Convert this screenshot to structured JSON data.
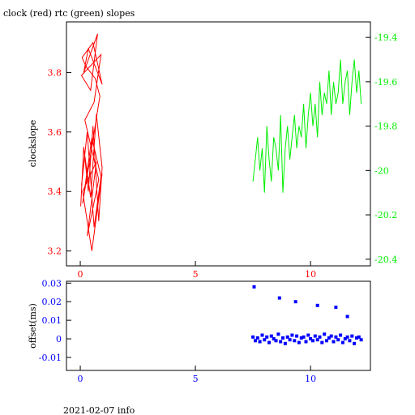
{
  "page": {
    "title": "clock (red) rtc (green) slopes",
    "footer": "2021-02-07 info"
  },
  "colors": {
    "clock": "#ff0000",
    "rtc": "#00ee00",
    "offset": "#0000ff",
    "axis": "#000000"
  },
  "chart_data": [
    {
      "type": "line",
      "title": "clock (red) rtc (green) slopes",
      "xlabel": "",
      "ylabel": "clockslope",
      "xlim": [
        -0.6,
        12.6
      ],
      "x_ticks": [
        0,
        5,
        10
      ],
      "ylim_left": [
        3.15,
        3.97
      ],
      "y_ticks_left": [
        3.2,
        3.4,
        3.6,
        3.8
      ],
      "ylim_right": [
        -20.43,
        -19.33
      ],
      "y_ticks_right": [
        -20.4,
        -20.2,
        -20,
        -19.8,
        -19.6,
        -19.4
      ],
      "grid": false,
      "series": [
        {
          "name": "clock",
          "color": "#ff0000",
          "axis": "left",
          "x": [
            0.02,
            0.15,
            0.35,
            0.55,
            0.8,
            0.95,
            0.7,
            0.45,
            0.2,
            0.05,
            0.3,
            0.6,
            0.9,
            0.5,
            0.1,
            0.4,
            0.85,
            0.65,
            0.25,
            0.08,
            0.55,
            0.95,
            0.35,
            0.15,
            0.75,
            0.45,
            0.05,
            0.9,
            0.6,
            0.2,
            0.8,
            0.3,
            0.7,
            0.1,
            0.5,
            0.95
          ],
          "y": [
            3.35,
            3.55,
            3.4,
            3.62,
            3.3,
            3.48,
            3.66,
            3.38,
            3.52,
            3.42,
            3.6,
            3.28,
            3.45,
            3.58,
            3.36,
            3.5,
            3.72,
            3.78,
            3.82,
            3.85,
            3.9,
            3.76,
            3.88,
            3.8,
            3.93,
            3.74,
            3.79,
            3.86,
            3.7,
            3.64,
            3.44,
            3.25,
            3.5,
            3.4,
            3.2,
            3.46
          ]
        },
        {
          "name": "rtc",
          "color": "#00ee00",
          "axis": "right",
          "x": [
            7.5,
            7.6,
            7.7,
            7.8,
            7.9,
            8.0,
            8.1,
            8.2,
            8.3,
            8.4,
            8.5,
            8.6,
            8.7,
            8.8,
            8.9,
            9.0,
            9.1,
            9.2,
            9.3,
            9.4,
            9.5,
            9.6,
            9.7,
            9.8,
            9.9,
            10.0,
            10.1,
            10.2,
            10.3,
            10.4,
            10.5,
            10.6,
            10.7,
            10.8,
            10.9,
            11.0,
            11.1,
            11.2,
            11.3,
            11.4,
            11.5,
            11.6,
            11.7,
            11.8,
            11.9,
            12.0,
            12.1,
            12.2
          ],
          "y": [
            -20.05,
            -19.95,
            -19.85,
            -20.0,
            -19.9,
            -20.1,
            -19.8,
            -19.95,
            -20.05,
            -19.85,
            -19.9,
            -20.0,
            -19.75,
            -20.1,
            -19.9,
            -19.8,
            -19.95,
            -19.85,
            -19.75,
            -19.9,
            -19.8,
            -19.85,
            -19.7,
            -19.9,
            -19.75,
            -19.65,
            -19.8,
            -19.7,
            -19.85,
            -19.6,
            -19.75,
            -19.65,
            -19.7,
            -19.55,
            -19.75,
            -19.6,
            -19.7,
            -19.65,
            -19.5,
            -19.7,
            -19.6,
            -19.55,
            -19.75,
            -19.6,
            -19.5,
            -19.65,
            -19.55,
            -19.7
          ]
        }
      ]
    },
    {
      "type": "scatter",
      "xlabel": "",
      "ylabel": "offset(ms)",
      "xlim": [
        -0.6,
        12.6
      ],
      "x_ticks": [
        0,
        5,
        10
      ],
      "ylim": [
        -0.017,
        0.031
      ],
      "y_ticks": [
        -0.01,
        0,
        0.01,
        0.02,
        0.03
      ],
      "y_tick_labels": [
        "-0.01",
        "0",
        "0.01",
        "0.02",
        "0.03"
      ],
      "grid": false,
      "series": [
        {
          "name": "offset",
          "color": "#0000ff",
          "x": [
            7.5,
            7.6,
            7.7,
            7.8,
            7.9,
            8.0,
            8.1,
            8.2,
            8.3,
            8.4,
            8.5,
            8.6,
            8.7,
            8.8,
            8.9,
            9.0,
            9.1,
            9.2,
            9.3,
            9.4,
            9.5,
            9.6,
            9.7,
            9.8,
            9.9,
            10.0,
            10.1,
            10.2,
            10.3,
            10.4,
            10.5,
            10.6,
            10.7,
            10.8,
            10.9,
            11.0,
            11.1,
            11.2,
            11.3,
            11.4,
            11.5,
            11.6,
            11.7,
            11.8,
            11.9,
            12.0,
            12.1,
            12.2,
            7.55,
            8.65,
            9.35,
            10.3,
            11.1,
            11.6
          ],
          "y": [
            0.001,
            -0.001,
            0.0005,
            -0.0015,
            0.002,
            -0.0005,
            0.001,
            -0.002,
            0.0015,
            0.0,
            -0.001,
            0.0025,
            -0.0015,
            0.0005,
            -0.0025,
            0.001,
            -0.0005,
            0.002,
            -0.001,
            0.0015,
            -0.002,
            0.0005,
            0.001,
            -0.0015,
            0.002,
            0.0,
            -0.001,
            0.0015,
            -0.0005,
            0.001,
            -0.002,
            0.0025,
            -0.001,
            0.0005,
            0.0015,
            -0.0015,
            0.001,
            -0.0005,
            0.002,
            -0.002,
            0.0,
            0.001,
            -0.001,
            0.0015,
            -0.0025,
            0.0005,
            0.001,
            -0.0005,
            0.028,
            0.022,
            0.02,
            0.018,
            0.017,
            0.012
          ]
        }
      ]
    }
  ]
}
